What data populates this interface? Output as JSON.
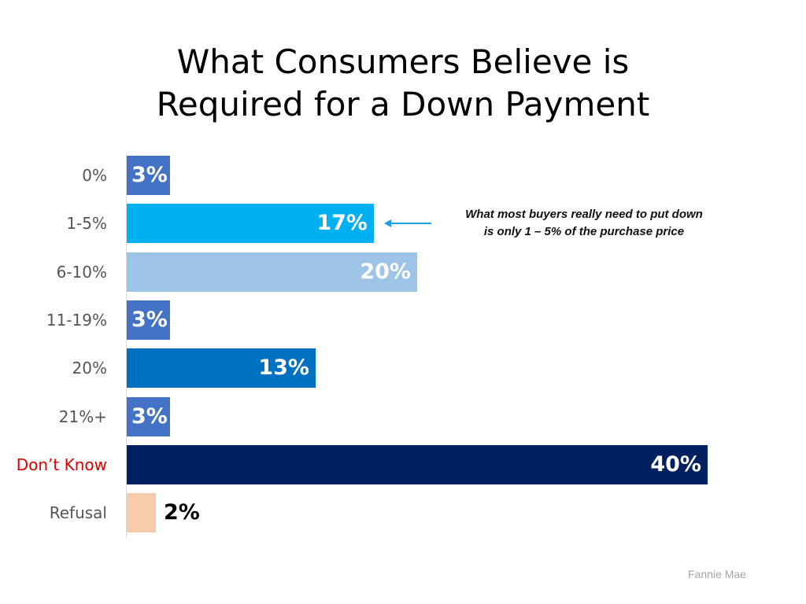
{
  "chart_data": {
    "type": "bar",
    "orientation": "horizontal",
    "title": "What Consumers Believe is Required for a Down Payment",
    "title_lines": [
      "What Consumers Believe is",
      "Required for a Down Payment"
    ],
    "categories": [
      "0%",
      "1-5%",
      "6-10%",
      "11-19%",
      "20%",
      "21%+",
      "Don’t Know",
      "Refusal"
    ],
    "values": [
      3,
      17,
      20,
      3,
      13,
      3,
      40,
      2
    ],
    "value_labels": [
      "3%",
      "17%",
      "20%",
      "3%",
      "13%",
      "3%",
      "40%",
      "2%"
    ],
    "colors": [
      "#4472c4",
      "#00b0f0",
      "#9dc3e6",
      "#4472c4",
      "#0070c0",
      "#4472c4",
      "#002060",
      "#f8cbad"
    ],
    "highlight_category": "Don’t Know",
    "highlight_color": "#e00000",
    "xlabel": "",
    "ylabel": "",
    "xlim": [
      0,
      40
    ],
    "grid": false,
    "legend": null,
    "annotation": {
      "text_lines": [
        "What most buyers really need to put down",
        "is only 1 – 5% of the purchase price"
      ],
      "points_to": "1-5%",
      "arrow_color": "#1ba1e2"
    },
    "source": "Fannie Mae"
  }
}
